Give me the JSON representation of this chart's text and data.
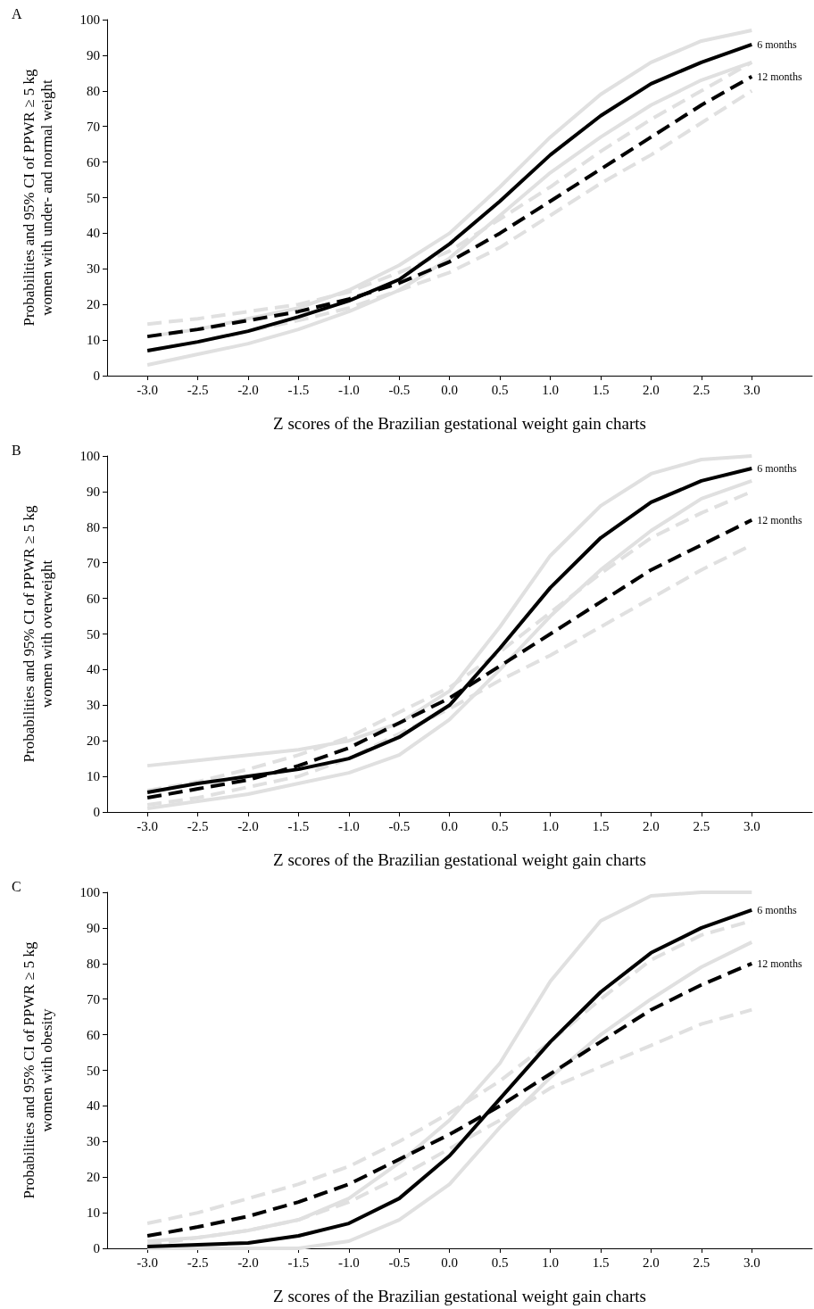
{
  "chart_data": [
    {
      "type": "line",
      "title": "A",
      "xlabel": "Z scores of the Brazilian gestational weight gain charts",
      "ylabel": "Probabilities and 95% CI of PPWR ≥ 5 kg\nwomen with under- and normal weight",
      "x": [
        -3,
        -2.5,
        -2,
        -1.5,
        -1,
        -0.5,
        0,
        0.5,
        1,
        1.5,
        2,
        2.5,
        3
      ],
      "xlim": [
        -3.4,
        3.6
      ],
      "xticks": [
        {
          "value": -3,
          "label": "-3.0"
        },
        {
          "value": -2.5,
          "label": "-2.5"
        },
        {
          "value": -2,
          "label": "-2.0"
        },
        {
          "value": -1.5,
          "label": "-1.5"
        },
        {
          "value": -1,
          "label": "-1.0"
        },
        {
          "value": -0.5,
          "label": "-0.5"
        },
        {
          "value": 0,
          "label": "0.0"
        },
        {
          "value": 0.5,
          "label": "0.5"
        },
        {
          "value": 1,
          "label": "1.0"
        },
        {
          "value": 1.5,
          "label": "1.5"
        },
        {
          "value": 2,
          "label": "2.0"
        },
        {
          "value": 2.5,
          "label": "2.5"
        },
        {
          "value": 3,
          "label": "3.0"
        }
      ],
      "ylim": [
        0,
        100
      ],
      "yticks": [
        0,
        10,
        20,
        30,
        40,
        50,
        60,
        70,
        80,
        90,
        100
      ],
      "grid": false,
      "legend": false,
      "marker": "none",
      "series": [
        {
          "color": "#e0e0e0",
          "line_style": "solid",
          "values": [
            11,
            13,
            16,
            19,
            24,
            31,
            40,
            53,
            67,
            79,
            88,
            94,
            97
          ]
        },
        {
          "color": "#e0e0e0",
          "line_style": "solid",
          "values": [
            3,
            6,
            9,
            13,
            18,
            24,
            33,
            45,
            57,
            67,
            76,
            83,
            88
          ]
        },
        {
          "color": "#e0e0e0",
          "line_style": "dashed",
          "values": [
            14.5,
            16,
            18,
            20,
            23.5,
            29,
            35,
            44,
            53,
            63,
            72,
            80,
            88
          ]
        },
        {
          "color": "#e0e0e0",
          "line_style": "dashed",
          "values": [
            7,
            9.5,
            12.5,
            15.5,
            19,
            24,
            29,
            36,
            45,
            54,
            62,
            71,
            80
          ]
        },
        {
          "name": "6 months",
          "color": "#000000",
          "line_style": "solid",
          "values": [
            7,
            9.5,
            12.5,
            16.5,
            21,
            27,
            37,
            49,
            62,
            73,
            82,
            88,
            93
          ]
        },
        {
          "name": "12 months",
          "color": "#000000",
          "line_style": "dashed",
          "values": [
            11,
            13,
            15.5,
            18,
            21.5,
            26,
            32,
            40,
            49,
            58,
            67,
            76,
            84
          ]
        }
      ]
    },
    {
      "type": "line",
      "title": "B",
      "xlabel": "Z scores of the Brazilian gestational weight gain charts",
      "ylabel": "Probabilities and 95% CI of PPWR ≥ 5 kg\nwomen with overweight",
      "x": [
        -3,
        -2.5,
        -2,
        -1.5,
        -1,
        -0.5,
        0,
        0.5,
        1,
        1.5,
        2,
        2.5,
        3
      ],
      "xlim": [
        -3.4,
        3.6
      ],
      "xticks": [
        {
          "value": -3,
          "label": "-3.0"
        },
        {
          "value": -2.5,
          "label": "-2.5"
        },
        {
          "value": -2,
          "label": "-2.0"
        },
        {
          "value": -1.5,
          "label": "-1.5"
        },
        {
          "value": -1,
          "label": "-1.0"
        },
        {
          "value": -0.5,
          "label": "-0.5"
        },
        {
          "value": 0,
          "label": "0.0"
        },
        {
          "value": 0.5,
          "label": "0.5"
        },
        {
          "value": 1,
          "label": "1.0"
        },
        {
          "value": 1.5,
          "label": "1.5"
        },
        {
          "value": 2,
          "label": "2.0"
        },
        {
          "value": 2.5,
          "label": "2.5"
        },
        {
          "value": 3,
          "label": "3.0"
        }
      ],
      "ylim": [
        0,
        100
      ],
      "yticks": [
        0,
        10,
        20,
        30,
        40,
        50,
        60,
        70,
        80,
        90,
        100
      ],
      "grid": false,
      "legend": false,
      "marker": "none",
      "series": [
        {
          "color": "#e0e0e0",
          "line_style": "solid",
          "values": [
            13,
            14.5,
            16,
            17.5,
            20,
            25,
            34,
            52,
            72,
            86,
            95,
            99,
            100
          ]
        },
        {
          "color": "#e0e0e0",
          "line_style": "solid",
          "values": [
            1,
            3,
            5,
            8,
            11,
            16,
            26,
            40,
            55,
            68,
            79,
            88,
            93
          ]
        },
        {
          "color": "#e0e0e0",
          "line_style": "dashed",
          "values": [
            6,
            8.5,
            12,
            16,
            21,
            28,
            35,
            45,
            56,
            67,
            77,
            84,
            90
          ]
        },
        {
          "color": "#e0e0e0",
          "line_style": "dashed",
          "values": [
            2,
            4,
            7,
            10,
            15,
            22,
            29,
            37,
            44,
            52,
            60,
            68,
            75
          ]
        },
        {
          "name": "6 months",
          "color": "#000000",
          "line_style": "solid",
          "values": [
            5.5,
            8,
            10,
            12,
            15,
            21,
            30,
            46,
            63,
            77,
            87,
            93,
            96.5
          ]
        },
        {
          "name": "12 months",
          "color": "#000000",
          "line_style": "dashed",
          "values": [
            4,
            6.5,
            9,
            13,
            18,
            25,
            32,
            41,
            50,
            59,
            68,
            75,
            82
          ]
        }
      ]
    },
    {
      "type": "line",
      "title": "C",
      "xlabel": "Z scores of the Brazilian gestational weight gain charts",
      "ylabel": "Probabilities and 95% CI of PPWR ≥ 5 kg\nwomen with obesity",
      "x": [
        -3,
        -2.5,
        -2,
        -1.5,
        -1,
        -0.5,
        0,
        0.5,
        1,
        1.5,
        2,
        2.5,
        3
      ],
      "xlim": [
        -3.4,
        3.6
      ],
      "xticks": [
        {
          "value": -3,
          "label": "-3.0"
        },
        {
          "value": -2.5,
          "label": "-2.5"
        },
        {
          "value": -2,
          "label": "-2.0"
        },
        {
          "value": -1.5,
          "label": "-1.5"
        },
        {
          "value": -1,
          "label": "-1.0"
        },
        {
          "value": -0.5,
          "label": "-0.5"
        },
        {
          "value": 0,
          "label": "0.0"
        },
        {
          "value": 0.5,
          "label": "0.5"
        },
        {
          "value": 1,
          "label": "1.0"
        },
        {
          "value": 1.5,
          "label": "1.5"
        },
        {
          "value": 2,
          "label": "2.0"
        },
        {
          "value": 2.5,
          "label": "2.5"
        },
        {
          "value": 3,
          "label": "3.0"
        }
      ],
      "ylim": [
        0,
        100
      ],
      "yticks": [
        0,
        10,
        20,
        30,
        40,
        50,
        60,
        70,
        80,
        90,
        100
      ],
      "grid": false,
      "legend": false,
      "marker": "none",
      "series": [
        {
          "color": "#e0e0e0",
          "line_style": "solid",
          "values": [
            2,
            3,
            5,
            8,
            14,
            24,
            36,
            52,
            75,
            92,
            99,
            100,
            100
          ]
        },
        {
          "color": "#e0e0e0",
          "line_style": "solid",
          "values": [
            0,
            0,
            0,
            0,
            2,
            8,
            18,
            34,
            48,
            60,
            70,
            79,
            86
          ]
        },
        {
          "color": "#e0e0e0",
          "line_style": "dashed",
          "values": [
            7,
            10,
            14,
            18,
            23,
            30,
            38,
            47,
            58,
            70,
            81,
            88,
            92
          ]
        },
        {
          "color": "#e0e0e0",
          "line_style": "dashed",
          "values": [
            1,
            3,
            5,
            8,
            13,
            20,
            28,
            36,
            45,
            51,
            57,
            63,
            67
          ]
        },
        {
          "name": "6 months",
          "color": "#000000",
          "line_style": "solid",
          "values": [
            0.5,
            1,
            1.5,
            3.5,
            7,
            14,
            26,
            42,
            58,
            72,
            83,
            90,
            95
          ]
        },
        {
          "name": "12 months",
          "color": "#000000",
          "line_style": "dashed",
          "values": [
            3.5,
            6,
            9,
            13,
            18,
            25,
            32,
            40,
            49,
            58,
            67,
            74,
            80
          ]
        }
      ]
    }
  ]
}
